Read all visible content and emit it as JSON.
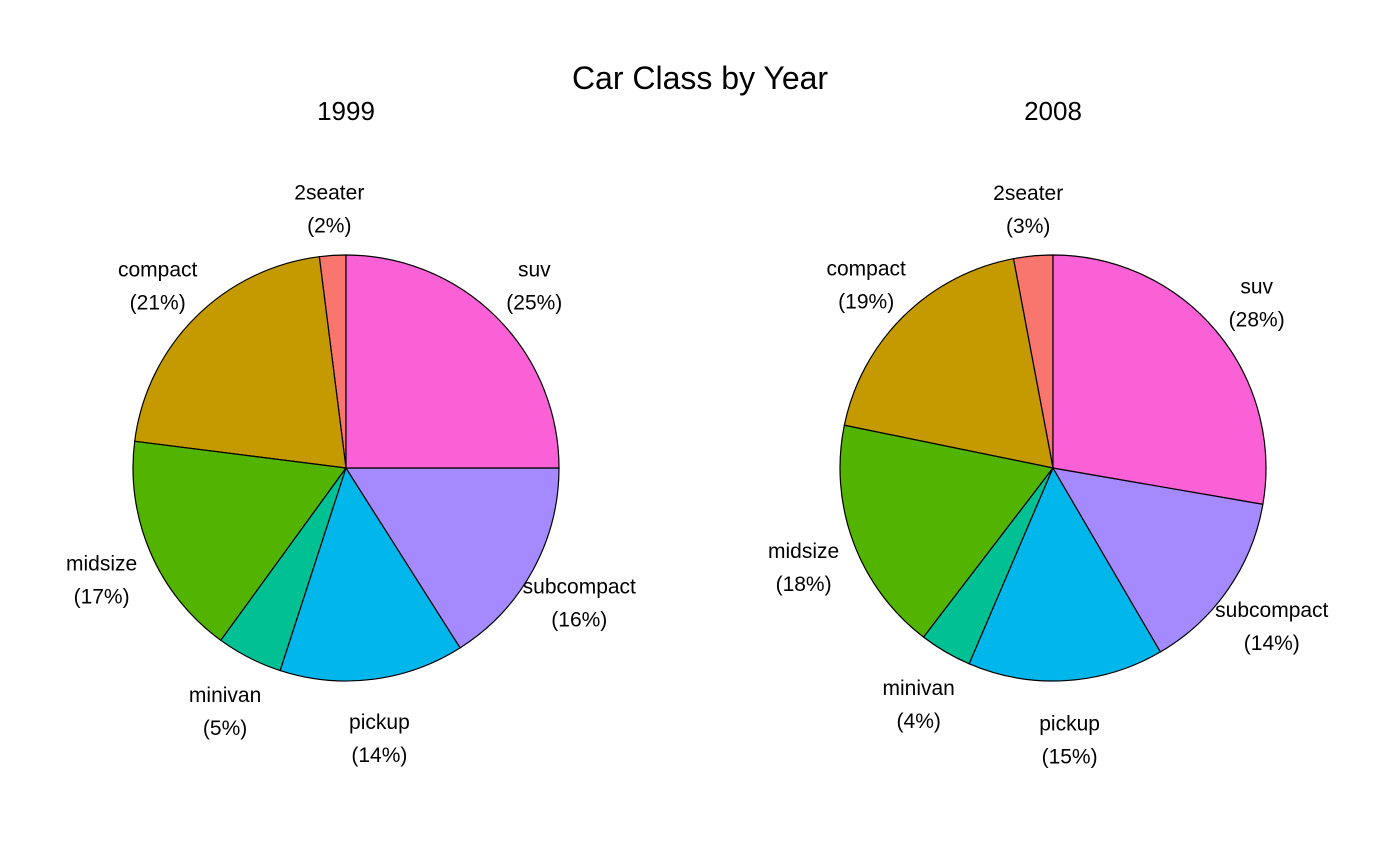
{
  "title": "Car Class by Year",
  "chart_data": [
    {
      "type": "pie",
      "title": "1999",
      "categories": [
        "2seater",
        "compact",
        "midsize",
        "minivan",
        "pickup",
        "subcompact",
        "suv"
      ],
      "values": [
        2,
        21,
        17,
        5,
        14,
        16,
        25
      ],
      "labels": [
        "(2%)",
        "(21%)",
        "(17%)",
        "(5%)",
        "(14%)",
        "(16%)",
        "(25%)"
      ]
    },
    {
      "type": "pie",
      "title": "2008",
      "categories": [
        "2seater",
        "compact",
        "midsize",
        "minivan",
        "pickup",
        "subcompact",
        "suv"
      ],
      "values": [
        3,
        19,
        18,
        4,
        15,
        14,
        28
      ],
      "labels": [
        "(3%)",
        "(19%)",
        "(18%)",
        "(4%)",
        "(15%)",
        "(14%)",
        "(28%)"
      ]
    }
  ],
  "colors": {
    "2seater": "#F8766D",
    "compact": "#C49A00",
    "midsize": "#53B400",
    "minivan": "#00C094",
    "pickup": "#00B6EB",
    "subcompact": "#A58AFF",
    "suv": "#FB61D7"
  }
}
